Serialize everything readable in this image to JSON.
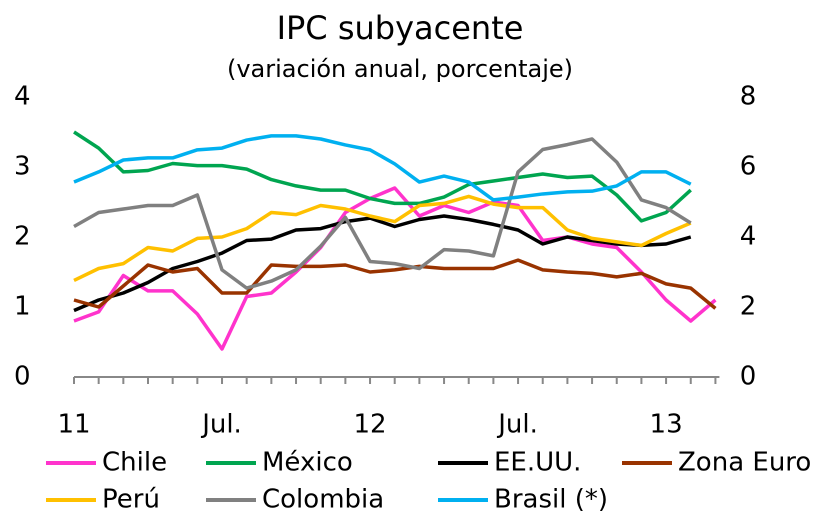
{
  "chart_data": {
    "type": "line",
    "title": "IPC subyacente",
    "subtitle": "(variación anual, porcentaje)",
    "categories": [
      "11",
      null,
      null,
      null,
      null,
      null,
      "Jul.",
      null,
      null,
      null,
      null,
      null,
      "12",
      null,
      null,
      null,
      null,
      null,
      "Jul.",
      null,
      null,
      null,
      null,
      null,
      "13",
      null,
      null
    ],
    "ylim": [
      0,
      4
    ],
    "yticks": [
      0,
      1,
      2,
      3,
      4
    ],
    "y2lim": [
      0,
      8
    ],
    "y2ticks": [
      0,
      2,
      4,
      6,
      8
    ],
    "series": [
      {
        "name": "Chile",
        "color": "#ff33cc",
        "values": [
          0.8,
          0.93,
          1.45,
          1.23,
          1.23,
          0.9,
          0.4,
          1.15,
          1.2,
          1.5,
          1.85,
          2.35,
          2.55,
          2.7,
          2.3,
          2.45,
          2.35,
          2.5,
          2.45,
          1.95,
          2.0,
          1.9,
          1.85,
          1.5,
          1.1,
          0.8,
          1.1
        ]
      },
      {
        "name": "México",
        "color": "#00a550",
        "values": [
          3.5,
          3.27,
          2.93,
          2.95,
          3.05,
          3.02,
          3.02,
          2.97,
          2.82,
          2.73,
          2.67,
          2.67,
          2.55,
          2.48,
          2.48,
          2.57,
          2.75,
          2.8,
          2.85,
          2.9,
          2.85,
          2.87,
          2.6,
          2.23,
          2.35,
          2.67,
          null
        ]
      },
      {
        "name": "EE.UU.",
        "color": "#000000",
        "values": [
          0.95,
          1.1,
          1.2,
          1.35,
          1.55,
          1.65,
          1.77,
          1.95,
          1.97,
          2.1,
          2.12,
          2.22,
          2.27,
          2.15,
          2.25,
          2.3,
          2.25,
          2.18,
          2.1,
          1.9,
          2.0,
          1.95,
          1.9,
          1.88,
          1.9,
          2.0,
          null
        ]
      },
      {
        "name": "Zona Euro",
        "color": "#993300",
        "values": [
          1.1,
          1.0,
          1.3,
          1.6,
          1.5,
          1.55,
          1.2,
          1.2,
          1.6,
          1.58,
          1.58,
          1.6,
          1.5,
          1.53,
          1.58,
          1.55,
          1.55,
          1.55,
          1.67,
          1.53,
          1.5,
          1.48,
          1.43,
          1.48,
          1.33,
          1.27,
          0.98
        ]
      },
      {
        "name": "Perú",
        "color": "#ffc000",
        "values": [
          1.38,
          1.55,
          1.62,
          1.85,
          1.8,
          1.98,
          2.0,
          2.12,
          2.35,
          2.32,
          2.45,
          2.4,
          2.3,
          2.22,
          2.45,
          2.48,
          2.58,
          2.47,
          2.42,
          2.42,
          2.1,
          1.98,
          1.93,
          1.88,
          2.05,
          2.2,
          null
        ]
      },
      {
        "name": "Colombia",
        "color": "#808080",
        "values": [
          2.15,
          2.35,
          2.4,
          2.45,
          2.45,
          2.6,
          1.53,
          1.27,
          1.37,
          1.53,
          1.87,
          2.28,
          1.65,
          1.62,
          1.55,
          1.82,
          1.8,
          1.73,
          2.93,
          3.25,
          3.32,
          3.4,
          3.07,
          2.53,
          2.42,
          2.2,
          null
        ]
      },
      {
        "name": "Brasil (*)",
        "color": "#00b0f0",
        "axis": "y2",
        "values": [
          5.57,
          5.86,
          6.2,
          6.26,
          6.26,
          6.49,
          6.54,
          6.77,
          6.89,
          6.89,
          6.8,
          6.63,
          6.49,
          6.09,
          5.57,
          5.74,
          5.57,
          5.06,
          5.14,
          5.23,
          5.29,
          5.31,
          5.46,
          5.86,
          5.86,
          5.51,
          null
        ]
      }
    ]
  }
}
